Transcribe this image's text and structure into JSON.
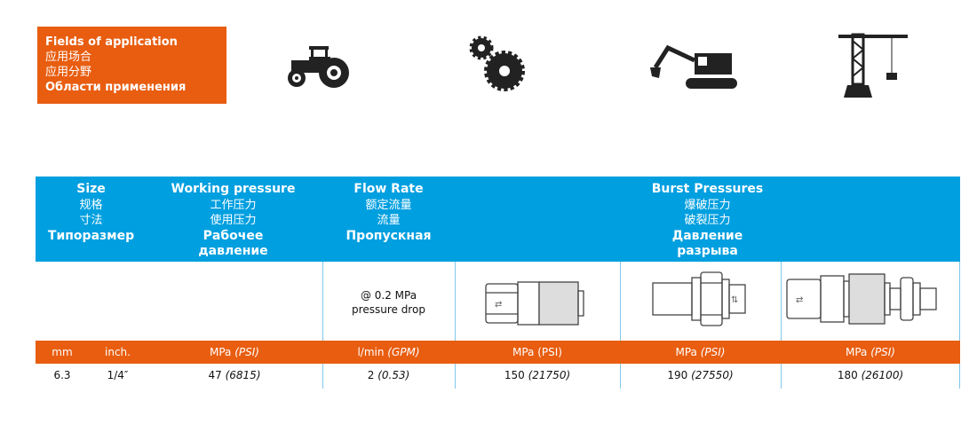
{
  "applications": {
    "title_en": "Fields of application",
    "title_zh1": "应用场合",
    "title_zh2": "应用分野",
    "title_ru": "Области применения",
    "icons": [
      "tractor-icon",
      "gears-icon",
      "excavator-icon",
      "crane-icon"
    ]
  },
  "colors": {
    "header_blue": "#009fe0",
    "accent_orange": "#e85d10"
  },
  "header": {
    "size": {
      "en": "Size",
      "zh1": "规格",
      "zh2": "寸法",
      "ru": "Типоразмер"
    },
    "working_pressure": {
      "en": "Working pressure",
      "zh1": "工作压力",
      "zh2": "使用压力",
      "ru1": "Рабочее",
      "ru2": "давление"
    },
    "flow_rate": {
      "en": "Flow Rate",
      "zh1": "额定流量",
      "zh2": "流量",
      "ru": "Пропускная"
    },
    "burst": {
      "en": "Burst Pressures",
      "zh1": "爆破压力",
      "zh2": "破裂压力",
      "ru1": "Давление",
      "ru2": "разрыва"
    }
  },
  "flow_note": {
    "line1": "@ 0.2 MPa",
    "line2": "pressure drop"
  },
  "units": {
    "mm": "mm",
    "inch": "inch.",
    "wp": "MPa",
    "wp_i": "(PSI)",
    "flow": "l/min",
    "flow_i": "(GPM)",
    "b1": "MPa (PSI)",
    "b2": "MPa",
    "b2_i": "(PSI)",
    "b3": "MPa",
    "b3_i": "(PSI)"
  },
  "row": {
    "mm": "6.3",
    "inch": "1/4″",
    "wp": "47",
    "wp_i": "(6815)",
    "flow": "2",
    "flow_i": "(0.53)",
    "b1": "150",
    "b1_i": "(21750)",
    "b2": "190",
    "b2_i": "(27550)",
    "b3": "180",
    "b3_i": "(26100)"
  }
}
